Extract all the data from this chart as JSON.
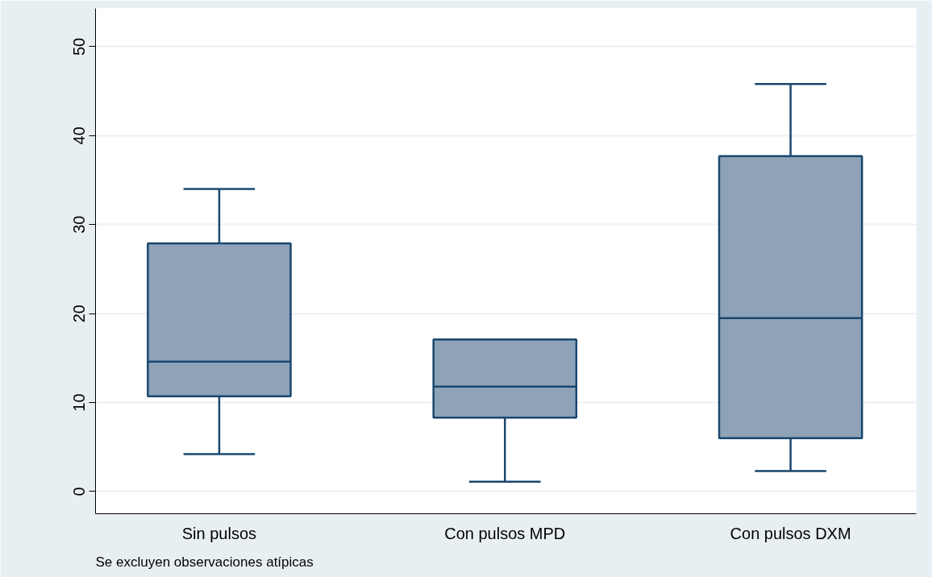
{
  "chart_data": {
    "type": "box",
    "categories": [
      "Sin pulsos",
      "Con pulsos MPD",
      "Con pulsos DXM"
    ],
    "boxes": [
      {
        "low": 4.2,
        "q1": 10.7,
        "median": 14.6,
        "q3": 27.9,
        "high": 34.0
      },
      {
        "low": 1.1,
        "q1": 8.3,
        "median": 11.8,
        "q3": 17.1,
        "high": 17.1
      },
      {
        "low": 2.3,
        "q1": 6.0,
        "median": 19.5,
        "q3": 37.7,
        "high": 45.8
      }
    ],
    "color": "#8ea3b7",
    "ylim": [
      -2.5,
      54.3
    ],
    "yticks": [
      0,
      10,
      20,
      30,
      40,
      50
    ],
    "grid": "y",
    "annotations": [
      "Se excluyen observaciones atípicas"
    ]
  }
}
